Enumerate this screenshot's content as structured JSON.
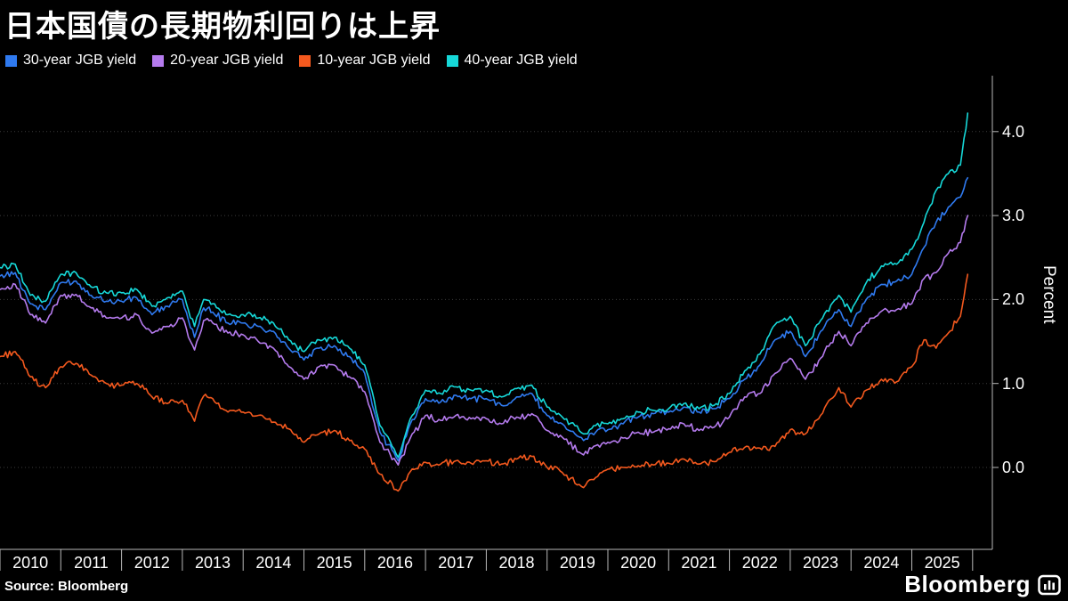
{
  "title": "日本国債の長期物利回りは上昇",
  "source": "Source: Bloomberg",
  "logo": "Bloomberg",
  "legend": [
    {
      "label": "30-year JGB yield",
      "color": "#2f7af0"
    },
    {
      "label": "20-year JGB yield",
      "color": "#b57bee"
    },
    {
      "label": "10-year JGB yield",
      "color": "#f4591e"
    },
    {
      "label": "40-year JGB yield",
      "color": "#16d8d8"
    }
  ],
  "axis": {
    "y_label": "Percent",
    "y_ticks": [
      "4.0",
      "3.0",
      "2.0",
      "1.0",
      "0.0"
    ],
    "x_ticks": [
      "2010",
      "2011",
      "2012",
      "2013",
      "2014",
      "2015",
      "2016",
      "2017",
      "2018",
      "2019",
      "2020",
      "2021",
      "2022",
      "2023",
      "2024",
      "2025"
    ]
  },
  "colors": {
    "background": "#000000",
    "gridline": "#3c3c3c",
    "axis_line": "#b8b8b8",
    "text": "#ffffff"
  },
  "chart_data": {
    "type": "line",
    "title": "日本国債の長期物利回りは上昇",
    "xlabel": "",
    "ylabel": "Percent",
    "ylim": [
      -0.8,
      4.65
    ],
    "xlim": [
      2010,
      2026.3
    ],
    "grid": "horizontal-dotted",
    "legend_position": "top-left",
    "y_tick_values": [
      4.0,
      3.0,
      2.0,
      1.0,
      0.0
    ],
    "x_tick_years": [
      2010,
      2011,
      2012,
      2013,
      2014,
      2015,
      2016,
      2017,
      2018,
      2019,
      2020,
      2021,
      2022,
      2023,
      2024,
      2025
    ],
    "x": [
      2010.0,
      2010.25,
      2010.5,
      2010.75,
      2011.0,
      2011.25,
      2011.5,
      2011.75,
      2012.0,
      2012.25,
      2012.5,
      2012.75,
      2013.0,
      2013.2,
      2013.35,
      2013.5,
      2013.75,
      2014.0,
      2014.25,
      2014.5,
      2014.75,
      2015.0,
      2015.25,
      2015.5,
      2015.75,
      2016.0,
      2016.25,
      2016.55,
      2016.75,
      2017.0,
      2017.25,
      2017.5,
      2017.75,
      2018.0,
      2018.25,
      2018.5,
      2018.75,
      2019.0,
      2019.25,
      2019.6,
      2019.8,
      2020.0,
      2020.25,
      2020.5,
      2020.75,
      2021.0,
      2021.25,
      2021.5,
      2021.75,
      2022.0,
      2022.25,
      2022.5,
      2022.75,
      2023.0,
      2023.25,
      2023.5,
      2023.8,
      2024.0,
      2024.25,
      2024.5,
      2024.75,
      2025.0,
      2025.2,
      2025.4,
      2025.6,
      2025.8,
      2025.92
    ],
    "series": [
      {
        "name": "30-year JGB yield",
        "color": "#2f7af0",
        "values": [
          2.28,
          2.32,
          1.95,
          1.88,
          2.2,
          2.22,
          2.05,
          1.98,
          1.98,
          2.02,
          1.82,
          1.92,
          2.0,
          1.55,
          1.9,
          1.85,
          1.72,
          1.72,
          1.68,
          1.62,
          1.42,
          1.28,
          1.42,
          1.45,
          1.32,
          1.12,
          0.42,
          0.08,
          0.52,
          0.82,
          0.78,
          0.86,
          0.82,
          0.82,
          0.74,
          0.84,
          0.88,
          0.62,
          0.52,
          0.32,
          0.42,
          0.45,
          0.52,
          0.6,
          0.64,
          0.66,
          0.72,
          0.66,
          0.7,
          0.82,
          1.05,
          1.22,
          1.52,
          1.62,
          1.32,
          1.62,
          1.88,
          1.68,
          2.0,
          2.18,
          2.22,
          2.3,
          2.62,
          2.92,
          3.1,
          3.22,
          3.45
        ]
      },
      {
        "name": "20-year JGB yield",
        "color": "#b57bee",
        "values": [
          2.12,
          2.18,
          1.82,
          1.72,
          2.05,
          2.06,
          1.9,
          1.78,
          1.78,
          1.82,
          1.6,
          1.68,
          1.78,
          1.4,
          1.75,
          1.72,
          1.6,
          1.58,
          1.5,
          1.42,
          1.2,
          1.05,
          1.2,
          1.22,
          1.08,
          0.9,
          0.3,
          0.03,
          0.35,
          0.62,
          0.56,
          0.62,
          0.58,
          0.58,
          0.52,
          0.6,
          0.64,
          0.44,
          0.36,
          0.15,
          0.26,
          0.3,
          0.35,
          0.42,
          0.42,
          0.46,
          0.52,
          0.44,
          0.48,
          0.6,
          0.84,
          0.88,
          1.12,
          1.3,
          1.05,
          1.3,
          1.62,
          1.45,
          1.72,
          1.86,
          1.88,
          1.95,
          2.25,
          2.32,
          2.55,
          2.68,
          3.0
        ]
      },
      {
        "name": "10-year JGB yield",
        "color": "#f4591e",
        "values": [
          1.32,
          1.38,
          1.08,
          0.95,
          1.2,
          1.24,
          1.1,
          1.0,
          0.98,
          1.0,
          0.84,
          0.76,
          0.8,
          0.55,
          0.85,
          0.82,
          0.66,
          0.66,
          0.62,
          0.54,
          0.46,
          0.3,
          0.4,
          0.44,
          0.32,
          0.22,
          -0.08,
          -0.28,
          -0.05,
          0.06,
          0.04,
          0.08,
          0.05,
          0.08,
          0.04,
          0.1,
          0.13,
          0.0,
          -0.06,
          -0.24,
          -0.12,
          -0.02,
          0.0,
          0.02,
          0.03,
          0.05,
          0.1,
          0.04,
          0.07,
          0.18,
          0.24,
          0.23,
          0.25,
          0.45,
          0.4,
          0.62,
          0.95,
          0.72,
          0.92,
          1.05,
          1.02,
          1.2,
          1.52,
          1.42,
          1.6,
          1.8,
          2.3
        ]
      },
      {
        "name": "40-year JGB yield",
        "color": "#16d8d8",
        "values": [
          2.38,
          2.42,
          2.05,
          1.98,
          2.3,
          2.32,
          2.15,
          2.08,
          2.08,
          2.12,
          1.92,
          2.02,
          2.1,
          1.68,
          2.0,
          1.95,
          1.82,
          1.82,
          1.78,
          1.72,
          1.52,
          1.38,
          1.52,
          1.55,
          1.42,
          1.22,
          0.5,
          0.12,
          0.58,
          0.92,
          0.88,
          0.96,
          0.92,
          0.92,
          0.84,
          0.94,
          0.98,
          0.72,
          0.6,
          0.4,
          0.5,
          0.52,
          0.58,
          0.66,
          0.68,
          0.7,
          0.76,
          0.7,
          0.74,
          0.88,
          1.15,
          1.35,
          1.7,
          1.8,
          1.45,
          1.75,
          2.05,
          1.85,
          2.2,
          2.4,
          2.42,
          2.6,
          2.92,
          3.3,
          3.5,
          3.6,
          4.22
        ]
      }
    ]
  }
}
